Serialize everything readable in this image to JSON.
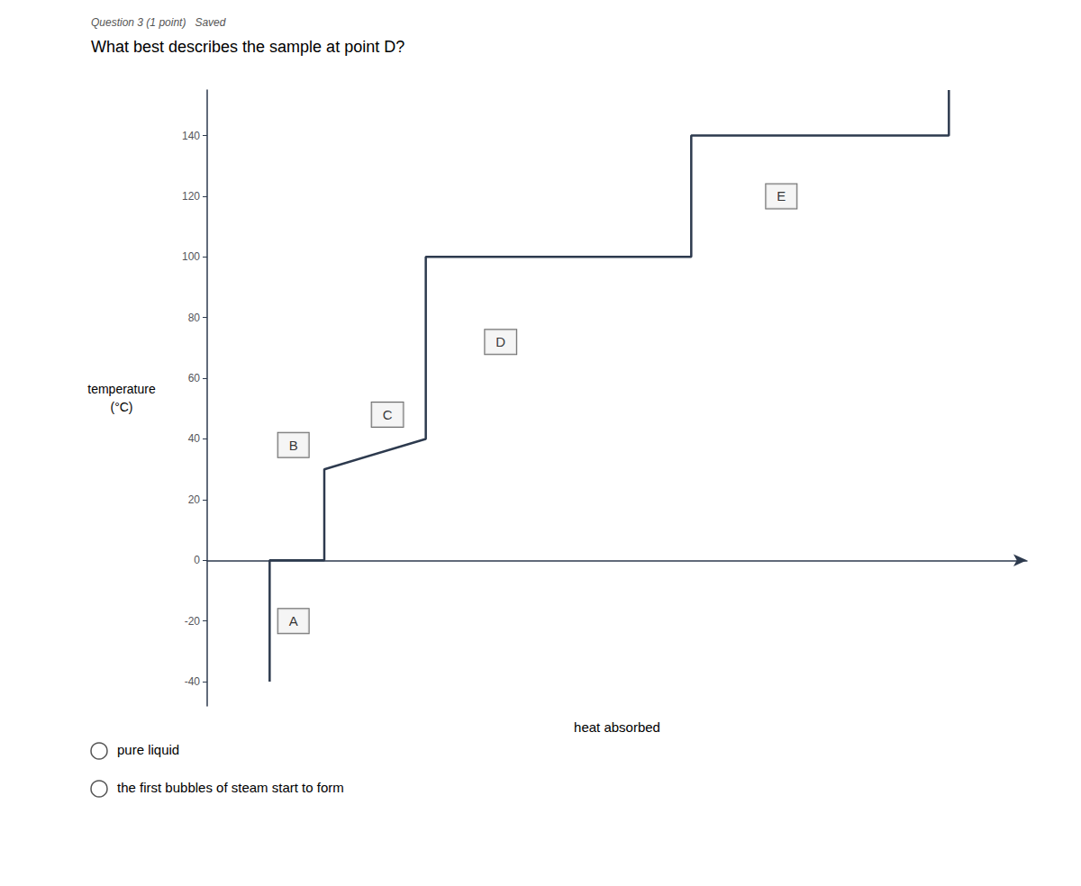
{
  "chart_data": {
    "type": "line",
    "title": "What best describes the sample at point D?",
    "subtitle": "Question 3 (1 point)   Saved",
    "xlabel": "heat absorbed",
    "ylabel": "temperature\n(°C)",
    "x": [
      0.8,
      0.8,
      1.5,
      1.5,
      2.8,
      2.8,
      6.2,
      6.2,
      8.9,
      9.5,
      9.5
    ],
    "values": [
      -40,
      0,
      0,
      30,
      40,
      100,
      100,
      140,
      140,
      140,
      155
    ],
    "color": "#2d3a4e",
    "xlim": [
      0.0,
      10.5
    ],
    "ylim": [
      -48,
      155
    ],
    "yticks": [
      -40,
      -20,
      0,
      20,
      40,
      60,
      80,
      100,
      120,
      140
    ],
    "grid": false,
    "tick_labels": "y",
    "annotations": [
      {
        "text": "A",
        "x": 0.85,
        "y": -20
      },
      {
        "text": "B",
        "x": 0.85,
        "y": 38
      },
      {
        "text": "C",
        "x": 2.05,
        "y": 48
      },
      {
        "text": "D",
        "x": 3.5,
        "y": 72
      },
      {
        "text": "E",
        "x": 7.1,
        "y": 120
      },
      {
        "text": "pure liquid"
      },
      {
        "text": "the first bubbles of steam start to form"
      }
    ]
  }
}
